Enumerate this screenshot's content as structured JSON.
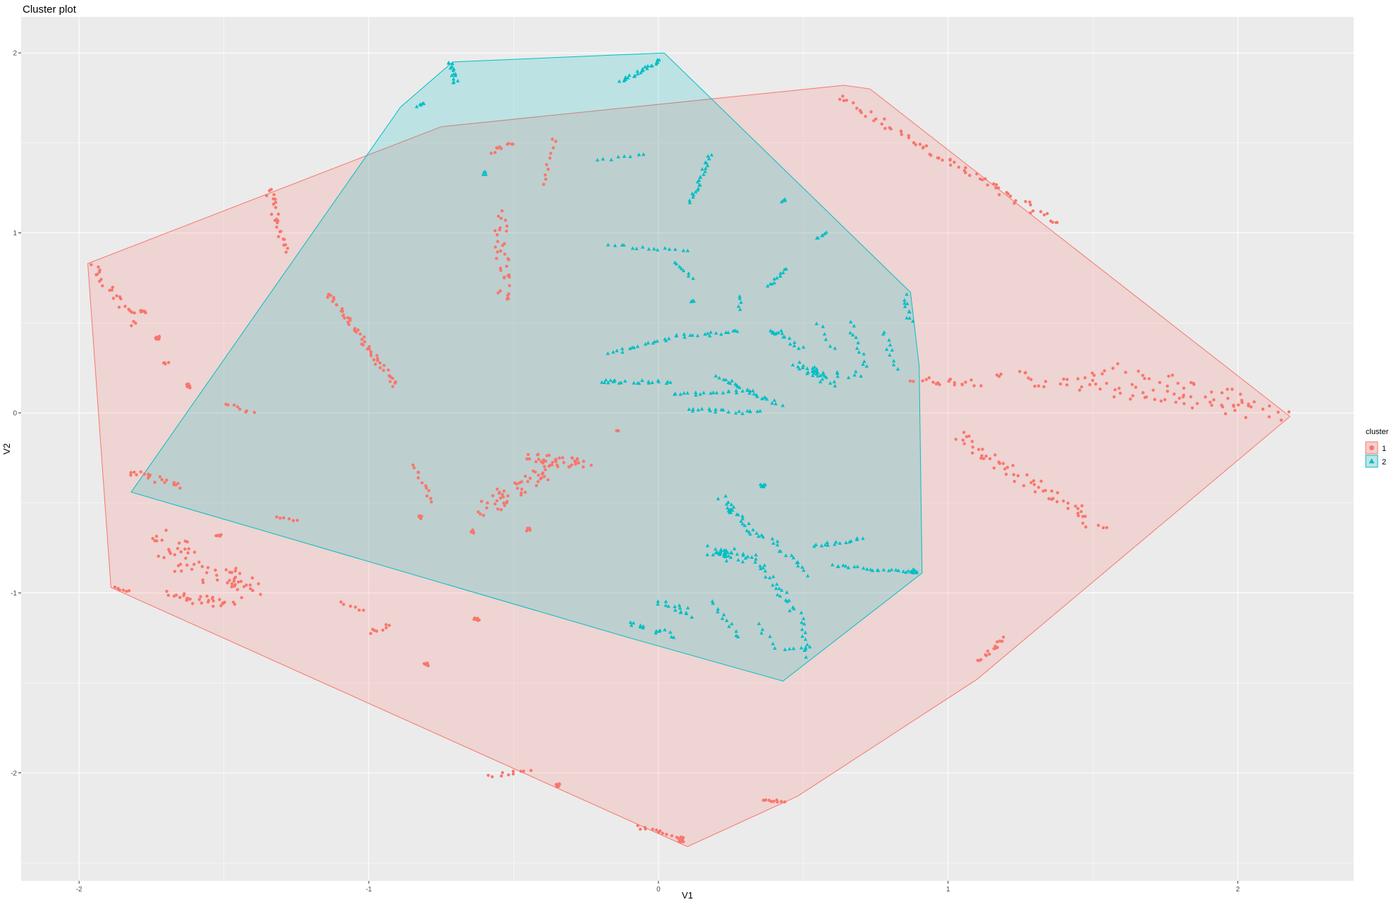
{
  "chart_data": {
    "type": "scatter",
    "title": "Cluster plot",
    "xlabel": "V1",
    "ylabel": "V2",
    "xlim": [
      -2.2,
      2.4
    ],
    "ylim": [
      -2.6,
      2.2
    ],
    "x_ticks": [
      -2,
      -1,
      0,
      1,
      2
    ],
    "x_tick_labels": [
      "-2",
      "-1",
      "0",
      "1",
      "2"
    ],
    "y_ticks": [
      -2,
      -1,
      0,
      1,
      2
    ],
    "y_tick_labels": [
      "-2",
      "-1",
      "0",
      "1",
      "2"
    ],
    "grid": true,
    "legend": {
      "title": "cluster",
      "position": "right",
      "entries": [
        {
          "label": "1",
          "shape": "circle",
          "color": "#F8766D"
        },
        {
          "label": "2",
          "shape": "triangle",
          "color": "#00BFC4"
        }
      ]
    },
    "series": [
      {
        "name": "1",
        "color": "#F8766D",
        "shape": "circle",
        "hull": [
          [
            -1.97,
            0.83
          ],
          [
            -0.75,
            1.59
          ],
          [
            0.64,
            1.82
          ],
          [
            0.73,
            1.8
          ],
          [
            2.18,
            -0.02
          ],
          [
            1.1,
            -1.48
          ],
          [
            0.48,
            -2.13
          ],
          [
            0.1,
            -2.41
          ],
          [
            -1.89,
            -0.97
          ]
        ],
        "strokes": [
          {
            "from": [
              0.62,
              1.75
            ],
            "to": [
              1.38,
              1.05
            ],
            "n": 70,
            "jitter": 0.02
          },
          {
            "from": [
              1.18,
              0.22
            ],
            "to": [
              2.15,
              -0.02
            ],
            "n": 60,
            "jitter": 0.04
          },
          {
            "from": [
              1.5,
              0.25
            ],
            "to": [
              2.05,
              0.05
            ],
            "n": 40,
            "jitter": 0.06
          },
          {
            "from": [
              1.03,
              -0.12
            ],
            "to": [
              1.52,
              -0.63
            ],
            "n": 60,
            "jitter": 0.03
          },
          {
            "from": [
              0.88,
              0.18
            ],
            "to": [
              1.1,
              0.17
            ],
            "n": 20,
            "jitter": 0.02
          },
          {
            "from": [
              -1.14,
              0.67
            ],
            "to": [
              -0.91,
              0.15
            ],
            "n": 55,
            "jitter": 0.012
          },
          {
            "from": [
              -0.55,
              1.1
            ],
            "to": [
              -0.53,
              0.63
            ],
            "n": 35,
            "jitter": 0.025
          },
          {
            "from": [
              -1.35,
              1.25
            ],
            "to": [
              -1.28,
              0.9
            ],
            "n": 25,
            "jitter": 0.015
          },
          {
            "from": [
              -1.95,
              0.82
            ],
            "to": [
              -1.8,
              0.5
            ],
            "n": 25,
            "jitter": 0.02
          },
          {
            "from": [
              -1.82,
              -0.32
            ],
            "to": [
              -1.65,
              -0.4
            ],
            "n": 20,
            "jitter": 0.02
          },
          {
            "from": [
              -1.72,
              -0.7
            ],
            "to": [
              -1.6,
              -0.85
            ],
            "n": 30,
            "jitter": 0.06
          },
          {
            "from": [
              -1.55,
              -0.88
            ],
            "to": [
              -1.4,
              -0.98
            ],
            "n": 35,
            "jitter": 0.05
          },
          {
            "from": [
              -1.68,
              -1.02
            ],
            "to": [
              -1.48,
              -1.06
            ],
            "n": 30,
            "jitter": 0.03
          },
          {
            "from": [
              -0.6,
              -0.55
            ],
            "to": [
              -0.38,
              -0.3
            ],
            "n": 50,
            "jitter": 0.04
          },
          {
            "from": [
              -0.45,
              -0.25
            ],
            "to": [
              -0.25,
              -0.28
            ],
            "n": 40,
            "jitter": 0.03
          },
          {
            "from": [
              -0.85,
              -0.28
            ],
            "to": [
              -0.78,
              -0.5
            ],
            "n": 12,
            "jitter": 0.01
          },
          {
            "from": [
              1.1,
              -1.38
            ],
            "to": [
              1.2,
              -1.25
            ],
            "n": 15,
            "jitter": 0.01
          },
          {
            "from": [
              -1.0,
              -1.22
            ],
            "to": [
              -0.92,
              -1.18
            ],
            "n": 8,
            "jitter": 0.01
          },
          {
            "from": [
              -0.36,
              1.53
            ],
            "to": [
              -0.39,
              1.27
            ],
            "n": 10,
            "jitter": 0.01
          },
          {
            "from": [
              -0.58,
              1.45
            ],
            "to": [
              -0.5,
              1.5
            ],
            "n": 10,
            "jitter": 0.01
          },
          {
            "from": [
              -0.08,
              -2.3
            ],
            "to": [
              0.06,
              -2.35
            ],
            "n": 12,
            "jitter": 0.01
          },
          {
            "from": [
              0.36,
              -2.15
            ],
            "to": [
              0.43,
              -2.16
            ],
            "n": 10,
            "jitter": 0.006
          },
          {
            "from": [
              -0.58,
              -2.02
            ],
            "to": [
              -0.45,
              -1.98
            ],
            "n": 10,
            "jitter": 0.01
          },
          {
            "from": [
              -1.88,
              -0.97
            ],
            "to": [
              -1.83,
              -0.99
            ],
            "n": 6,
            "jitter": 0.006
          },
          {
            "from": [
              -1.5,
              0.05
            ],
            "to": [
              -1.4,
              0.0
            ],
            "n": 8,
            "jitter": 0.01
          },
          {
            "from": [
              -1.32,
              -0.58
            ],
            "to": [
              -1.25,
              -0.6
            ],
            "n": 6,
            "jitter": 0.006
          },
          {
            "from": [
              -1.1,
              -1.05
            ],
            "to": [
              -1.02,
              -1.1
            ],
            "n": 6,
            "jitter": 0.006
          }
        ],
        "blobs": [
          {
            "at": [
              -1.78,
              0.56
            ],
            "n": 8,
            "r": 0.012
          },
          {
            "at": [
              -1.73,
              0.42
            ],
            "n": 8,
            "r": 0.012
          },
          {
            "at": [
              -1.7,
              0.28
            ],
            "n": 6,
            "r": 0.01
          },
          {
            "at": [
              -1.62,
              0.15
            ],
            "n": 6,
            "r": 0.012
          },
          {
            "at": [
              -0.82,
              -0.58
            ],
            "n": 6,
            "r": 0.01
          },
          {
            "at": [
              -0.64,
              -0.66
            ],
            "n": 6,
            "r": 0.012
          },
          {
            "at": [
              -0.45,
              -0.65
            ],
            "n": 6,
            "r": 0.012
          },
          {
            "at": [
              -0.8,
              -1.4
            ],
            "n": 8,
            "r": 0.012
          },
          {
            "at": [
              -0.63,
              -1.15
            ],
            "n": 8,
            "r": 0.012
          },
          {
            "at": [
              -0.35,
              -2.07
            ],
            "n": 8,
            "r": 0.012
          },
          {
            "at": [
              -1.52,
              -0.68
            ],
            "n": 6,
            "r": 0.012
          },
          {
            "at": [
              -0.14,
              -0.1
            ],
            "n": 3,
            "r": 0.005
          },
          {
            "at": [
              0.08,
              -2.37
            ],
            "n": 10,
            "r": 0.014
          }
        ]
      },
      {
        "name": "2",
        "color": "#00BFC4",
        "shape": "triangle",
        "hull": [
          [
            -0.71,
            1.95
          ],
          [
            0.02,
            2.0
          ],
          [
            0.87,
            0.67
          ],
          [
            0.9,
            0.26
          ],
          [
            0.91,
            -0.89
          ],
          [
            0.43,
            -1.49
          ],
          [
            -0.1,
            -1.25
          ],
          [
            -1.82,
            -0.44
          ],
          [
            -0.89,
            1.7
          ]
        ],
        "strokes": [
          {
            "from": [
              -0.72,
              1.95
            ],
            "to": [
              -0.7,
              1.83
            ],
            "n": 15,
            "jitter": 0.01
          },
          {
            "from": [
              -0.13,
              1.84
            ],
            "to": [
              0.01,
              1.96
            ],
            "n": 25,
            "jitter": 0.008
          },
          {
            "from": [
              0.11,
              1.17
            ],
            "to": [
              0.18,
              1.44
            ],
            "n": 25,
            "jitter": 0.008
          },
          {
            "from": [
              -0.21,
              1.4
            ],
            "to": [
              -0.05,
              1.44
            ],
            "n": 8,
            "jitter": 0.006
          },
          {
            "from": [
              -0.17,
              0.93
            ],
            "to": [
              0.1,
              0.9
            ],
            "n": 15,
            "jitter": 0.008
          },
          {
            "from": [
              0.06,
              0.84
            ],
            "to": [
              0.12,
              0.75
            ],
            "n": 8,
            "jitter": 0.008
          },
          {
            "from": [
              0.38,
              0.7
            ],
            "to": [
              0.44,
              0.8
            ],
            "n": 12,
            "jitter": 0.008
          },
          {
            "from": [
              0.28,
              0.65
            ],
            "to": [
              0.28,
              0.57
            ],
            "n": 5,
            "jitter": 0.006
          },
          {
            "from": [
              -0.17,
              0.33
            ],
            "to": [
              0.08,
              0.43
            ],
            "n": 20,
            "jitter": 0.01
          },
          {
            "from": [
              0.1,
              0.42
            ],
            "to": [
              0.28,
              0.46
            ],
            "n": 15,
            "jitter": 0.01
          },
          {
            "from": [
              -0.2,
              0.17
            ],
            "to": [
              0.05,
              0.17
            ],
            "n": 20,
            "jitter": 0.01
          },
          {
            "from": [
              0.05,
              0.1
            ],
            "to": [
              0.32,
              0.12
            ],
            "n": 20,
            "jitter": 0.008
          },
          {
            "from": [
              0.2,
              0.2
            ],
            "to": [
              0.42,
              0.05
            ],
            "n": 25,
            "jitter": 0.012
          },
          {
            "from": [
              0.1,
              0.02
            ],
            "to": [
              0.35,
              0.0
            ],
            "n": 20,
            "jitter": 0.01
          },
          {
            "from": [
              0.42,
              0.45
            ],
            "to": [
              0.5,
              0.35
            ],
            "n": 10,
            "jitter": 0.015
          },
          {
            "from": [
              0.48,
              0.28
            ],
            "to": [
              0.6,
              0.15
            ],
            "n": 20,
            "jitter": 0.025
          },
          {
            "from": [
              0.66,
              0.5
            ],
            "to": [
              0.72,
              0.25
            ],
            "n": 12,
            "jitter": 0.01
          },
          {
            "from": [
              0.78,
              0.45
            ],
            "to": [
              0.82,
              0.25
            ],
            "n": 10,
            "jitter": 0.01
          },
          {
            "from": [
              0.85,
              0.65
            ],
            "to": [
              0.87,
              0.5
            ],
            "n": 10,
            "jitter": 0.01
          },
          {
            "from": [
              0.55,
              0.2
            ],
            "to": [
              0.7,
              0.22
            ],
            "n": 10,
            "jitter": 0.02
          },
          {
            "from": [
              0.22,
              -0.48
            ],
            "to": [
              0.35,
              -0.7
            ],
            "n": 25,
            "jitter": 0.02
          },
          {
            "from": [
              0.18,
              -0.75
            ],
            "to": [
              0.3,
              -0.82
            ],
            "n": 25,
            "jitter": 0.03
          },
          {
            "from": [
              0.33,
              -0.8
            ],
            "to": [
              0.47,
              -1.1
            ],
            "n": 25,
            "jitter": 0.015
          },
          {
            "from": [
              0.38,
              -0.7
            ],
            "to": [
              0.52,
              -0.9
            ],
            "n": 15,
            "jitter": 0.015
          },
          {
            "from": [
              0.5,
              -1.12
            ],
            "to": [
              0.51,
              -1.35
            ],
            "n": 12,
            "jitter": 0.01
          },
          {
            "from": [
              0.6,
              -0.85
            ],
            "to": [
              0.9,
              -0.89
            ],
            "n": 25,
            "jitter": 0.008
          },
          {
            "from": [
              0.53,
              -0.74
            ],
            "to": [
              0.7,
              -0.7
            ],
            "n": 15,
            "jitter": 0.01
          },
          {
            "from": [
              -0.1,
              -1.15
            ],
            "to": [
              0.05,
              -1.25
            ],
            "n": 15,
            "jitter": 0.02
          },
          {
            "from": [
              0.0,
              -1.05
            ],
            "to": [
              0.12,
              -1.12
            ],
            "n": 15,
            "jitter": 0.02
          },
          {
            "from": [
              0.18,
              -1.05
            ],
            "to": [
              0.28,
              -1.25
            ],
            "n": 12,
            "jitter": 0.01
          },
          {
            "from": [
              0.34,
              -1.18
            ],
            "to": [
              0.4,
              -1.3
            ],
            "n": 6,
            "jitter": 0.01
          },
          {
            "from": [
              -0.81,
              1.72
            ],
            "to": [
              -0.83,
              1.7
            ],
            "n": 5,
            "jitter": 0.006
          },
          {
            "from": [
              0.55,
              0.97
            ],
            "to": [
              0.58,
              1.0
            ],
            "n": 6,
            "jitter": 0.006
          },
          {
            "from": [
              0.55,
              0.5
            ],
            "to": [
              0.6,
              0.35
            ],
            "n": 6,
            "jitter": 0.01
          },
          {
            "from": [
              -0.18,
              0.18
            ],
            "to": [
              -0.15,
              0.18
            ],
            "n": 3,
            "jitter": 0.005
          },
          {
            "from": [
              0.44,
              -1.32
            ],
            "to": [
              0.52,
              -1.3
            ],
            "n": 6,
            "jitter": 0.006
          }
        ],
        "blobs": [
          {
            "at": [
              0.36,
              -0.4
            ],
            "n": 10,
            "r": 0.012
          },
          {
            "at": [
              0.25,
              -0.55
            ],
            "n": 8,
            "r": 0.012
          },
          {
            "at": [
              0.22,
              -0.78
            ],
            "n": 12,
            "r": 0.022
          },
          {
            "at": [
              0.53,
              0.23
            ],
            "n": 10,
            "r": 0.022
          },
          {
            "at": [
              0.4,
              0.45
            ],
            "n": 8,
            "r": 0.015
          },
          {
            "at": [
              0.43,
              1.18
            ],
            "n": 5,
            "r": 0.01
          },
          {
            "at": [
              0.12,
              0.62
            ],
            "n": 4,
            "r": 0.008
          },
          {
            "at": [
              -0.6,
              1.33
            ],
            "n": 4,
            "r": 0.008
          },
          {
            "at": [
              0.88,
              -0.88
            ],
            "n": 6,
            "r": 0.01
          }
        ]
      }
    ]
  }
}
